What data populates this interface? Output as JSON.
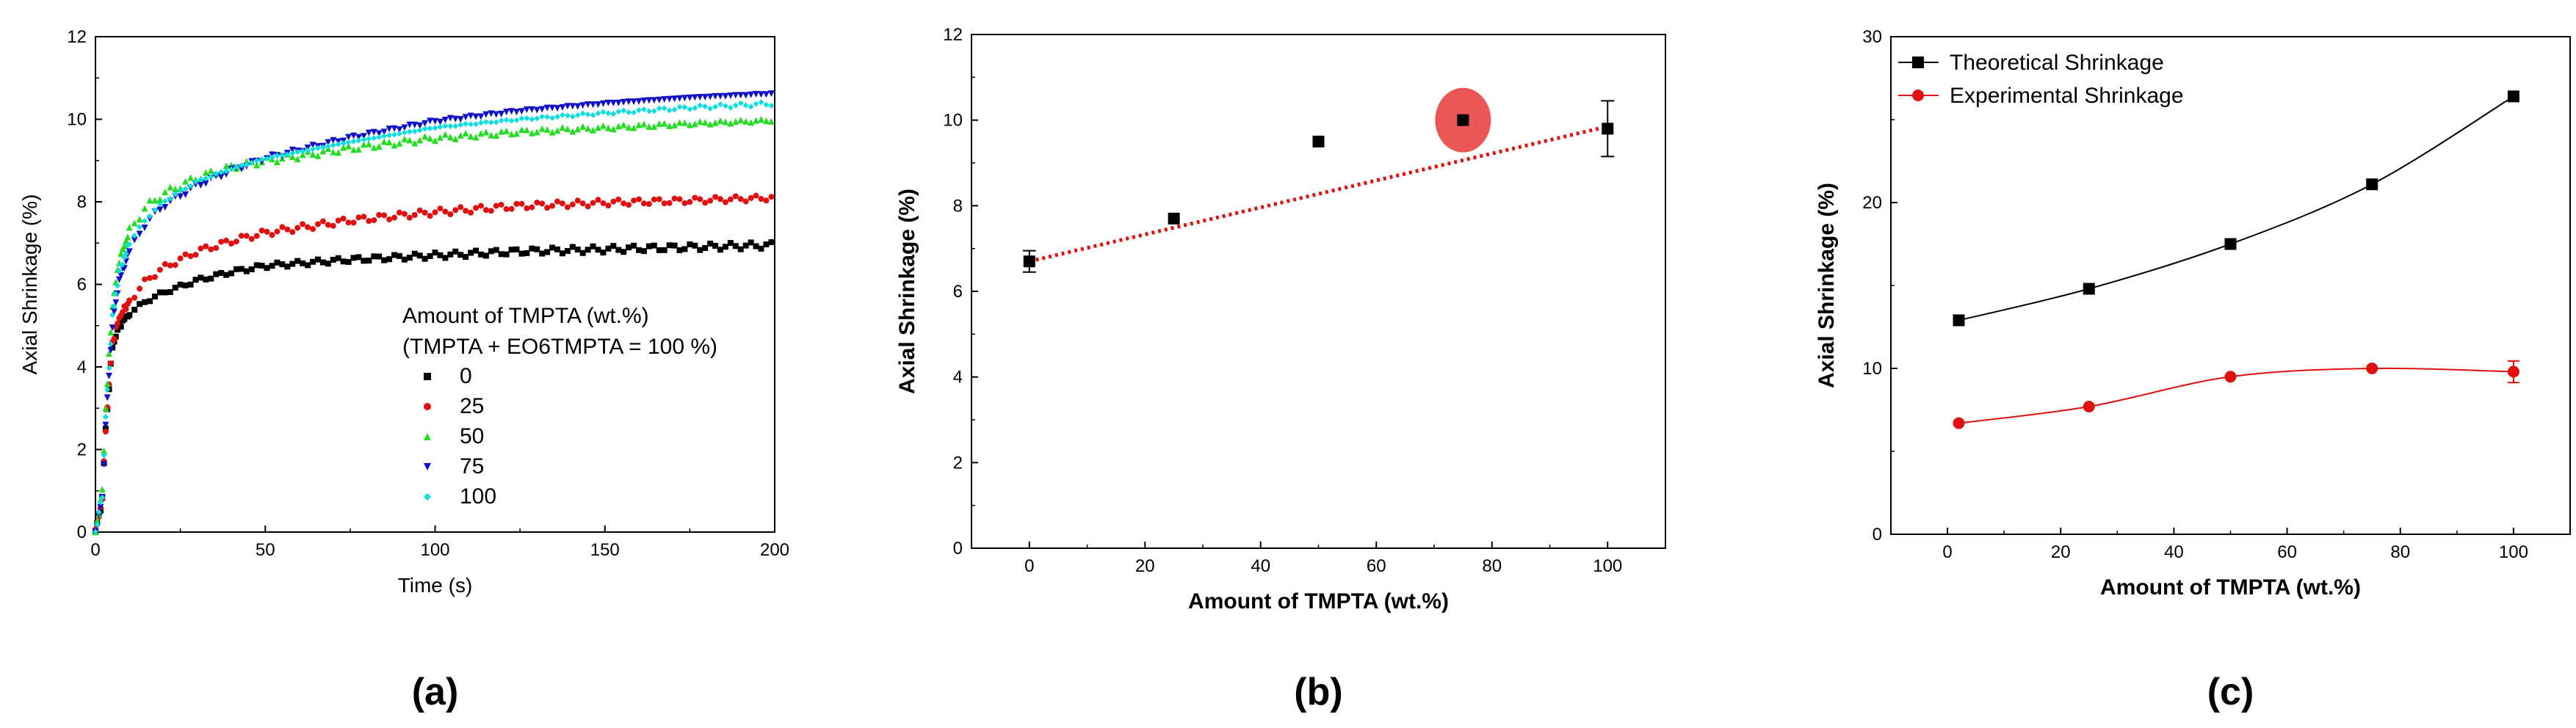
{
  "chart_data": [
    {
      "type": "scatter",
      "panel_label": "(a)",
      "xlabel": "Time (s)",
      "ylabel": "Axial Shrinkage (%)",
      "xlim": [
        0,
        200
      ],
      "ylim": [
        0,
        12
      ],
      "xticks": [
        "0",
        "50",
        "100",
        "150",
        "200"
      ],
      "yticks": [
        "0",
        "2",
        "4",
        "6",
        "8",
        "10",
        "12"
      ],
      "legend_title": "Amount of TMPTA (wt.%)",
      "legend_subtitle": "(TMPTA + EO6TMPTA = 100 %)",
      "legend_position": "center-right",
      "series": [
        {
          "name": "0",
          "marker": "square",
          "color": "#000000",
          "x": [
            0,
            2,
            3,
            5,
            7,
            10,
            15,
            20,
            30,
            40,
            50,
            75,
            100,
            125,
            150,
            175,
            200
          ],
          "values": [
            0,
            0.8,
            2.5,
            4.5,
            5.0,
            5.3,
            5.6,
            5.8,
            6.1,
            6.3,
            6.45,
            6.6,
            6.7,
            6.8,
            6.85,
            6.9,
            6.95
          ]
        },
        {
          "name": "25",
          "marker": "circle",
          "color": "#e01010",
          "x": [
            0,
            2,
            3,
            5,
            7,
            10,
            15,
            20,
            30,
            40,
            50,
            75,
            100,
            125,
            150,
            175,
            200
          ],
          "values": [
            0,
            0.8,
            2.5,
            4.6,
            5.2,
            5.6,
            6.1,
            6.4,
            6.8,
            7.05,
            7.25,
            7.55,
            7.75,
            7.9,
            7.98,
            8.03,
            8.1
          ]
        },
        {
          "name": "50",
          "marker": "triangle-up",
          "color": "#22dd22",
          "x": [
            0,
            2,
            3,
            5,
            7,
            10,
            15,
            20,
            30,
            40,
            50,
            75,
            100,
            125,
            150,
            175,
            200
          ],
          "values": [
            0,
            1.0,
            3.0,
            5.5,
            6.6,
            7.3,
            7.9,
            8.2,
            8.6,
            8.85,
            9.0,
            9.3,
            9.55,
            9.7,
            9.8,
            9.9,
            9.98
          ]
        },
        {
          "name": "75",
          "marker": "triangle-down",
          "color": "#1010c8",
          "x": [
            0,
            2,
            3,
            5,
            7,
            10,
            15,
            20,
            30,
            40,
            50,
            75,
            100,
            125,
            150,
            175,
            200
          ],
          "values": [
            0,
            0.8,
            2.6,
            5.0,
            6.1,
            6.8,
            7.5,
            7.9,
            8.4,
            8.75,
            9.05,
            9.55,
            9.95,
            10.2,
            10.38,
            10.52,
            10.62
          ]
        },
        {
          "name": "100",
          "marker": "diamond",
          "color": "#10dede",
          "x": [
            0,
            2,
            3,
            5,
            7,
            10,
            15,
            20,
            30,
            40,
            50,
            75,
            100,
            125,
            150,
            175,
            200
          ],
          "values": [
            0,
            0.9,
            2.8,
            5.2,
            6.3,
            7.0,
            7.6,
            8.0,
            8.5,
            8.8,
            9.05,
            9.45,
            9.8,
            10.0,
            10.15,
            10.28,
            10.38
          ]
        }
      ]
    },
    {
      "type": "scatter",
      "panel_label": "(b)",
      "xlabel": "Amount of TMPTA (wt.%)",
      "ylabel": "Axial Shrinkage (%)",
      "xlim": [
        -10,
        110
      ],
      "ylim": [
        0,
        12
      ],
      "xticks": [
        "0",
        "20",
        "40",
        "60",
        "80",
        "100"
      ],
      "yticks": [
        "0",
        "2",
        "4",
        "6",
        "8",
        "10",
        "12"
      ],
      "series": [
        {
          "name": "Axial Shrinkage",
          "marker": "square",
          "color": "#000000",
          "x": [
            0,
            25,
            50,
            75,
            100
          ],
          "values": [
            6.7,
            7.7,
            9.5,
            10.0,
            9.8
          ],
          "error": [
            0.25,
            0,
            0,
            0,
            0.65
          ]
        }
      ],
      "fit_line": {
        "style": "dotted",
        "color": "#e01010",
        "x": [
          0,
          100
        ],
        "values": [
          6.7,
          9.85
        ]
      },
      "highlight": {
        "x": 75,
        "y": 10.0,
        "color": "#e83a3a"
      }
    },
    {
      "type": "line",
      "panel_label": "(c)",
      "xlabel": "Amount of TMPTA (wt.%)",
      "ylabel": "Axial Shrinkage (%)",
      "xlim": [
        -10,
        110
      ],
      "ylim": [
        0,
        30
      ],
      "xticks": [
        "0",
        "20",
        "40",
        "60",
        "80",
        "100"
      ],
      "yticks": [
        "0",
        "10",
        "20",
        "30"
      ],
      "legend_position": "top-left",
      "series": [
        {
          "name": "Theoretical Shrinkage",
          "marker": "square",
          "color": "#000000",
          "x": [
            2,
            25,
            50,
            75,
            100
          ],
          "values": [
            12.9,
            14.8,
            17.5,
            21.1,
            26.4
          ],
          "error": [
            0,
            0,
            0,
            0,
            0
          ]
        },
        {
          "name": "Experimental Shrinkage",
          "marker": "circle",
          "color": "#e01010",
          "x": [
            2,
            25,
            50,
            75,
            100
          ],
          "values": [
            6.7,
            7.7,
            9.5,
            10.0,
            9.8
          ],
          "error": [
            0,
            0,
            0,
            0,
            0.65
          ]
        }
      ]
    }
  ]
}
